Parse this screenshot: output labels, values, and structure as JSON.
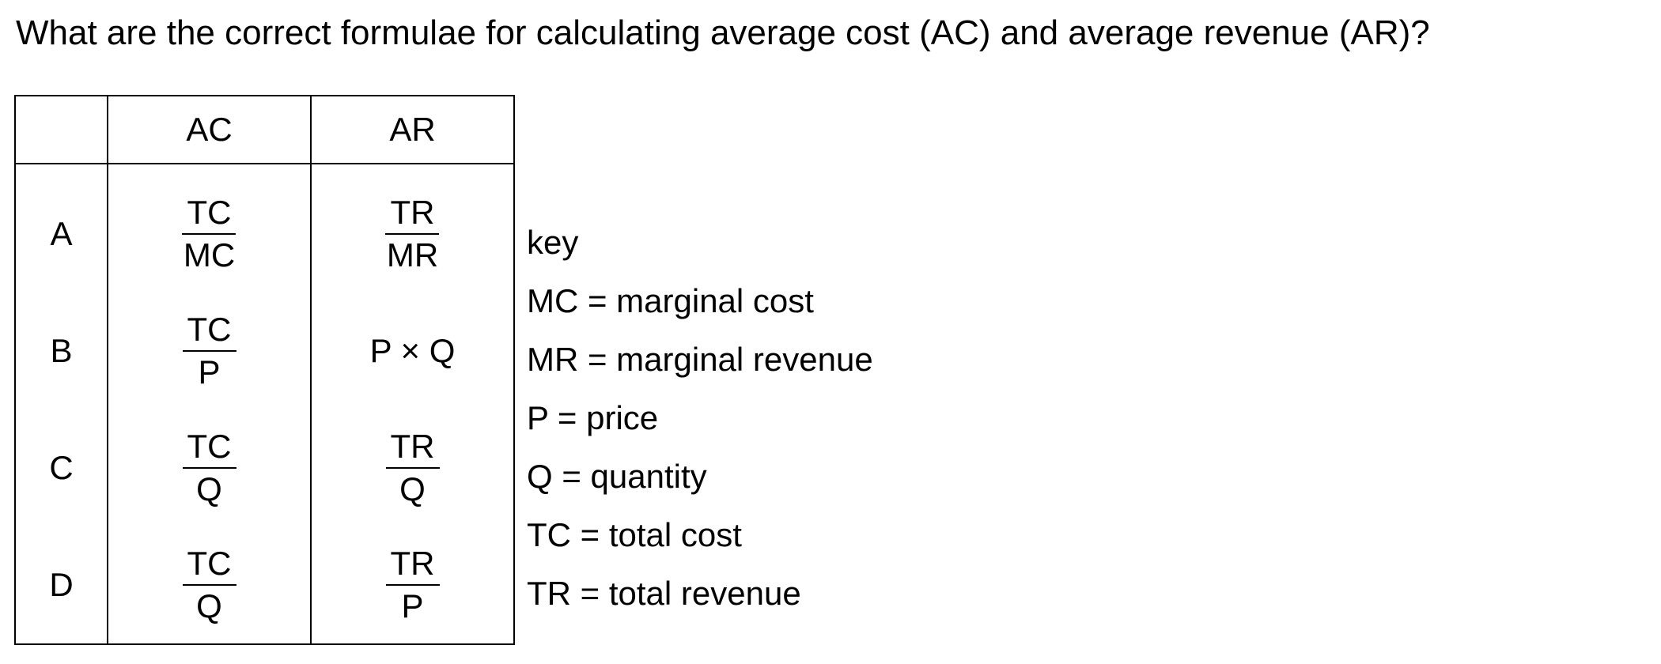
{
  "question": "What are the correct formulae for calculating average cost (AC) and average revenue (AR)?",
  "table": {
    "headers": [
      "",
      "AC",
      "AR"
    ],
    "rows": [
      {
        "label": "A",
        "ac": {
          "num": "TC",
          "den": "MC"
        },
        "ar": {
          "num": "TR",
          "den": "MR"
        }
      },
      {
        "label": "B",
        "ac": {
          "num": "TC",
          "den": "P"
        },
        "ar": {
          "text": "P × Q"
        }
      },
      {
        "label": "C",
        "ac": {
          "num": "TC",
          "den": "Q"
        },
        "ar": {
          "num": "TR",
          "den": "Q"
        }
      },
      {
        "label": "D",
        "ac": {
          "num": "TC",
          "den": "Q"
        },
        "ar": {
          "num": "TR",
          "den": "P"
        }
      }
    ]
  },
  "key": {
    "title": "key",
    "items": [
      "MC = marginal cost",
      "MR = marginal revenue",
      "P = price",
      "Q = quantity",
      "TC = total cost",
      "TR = total revenue"
    ]
  }
}
